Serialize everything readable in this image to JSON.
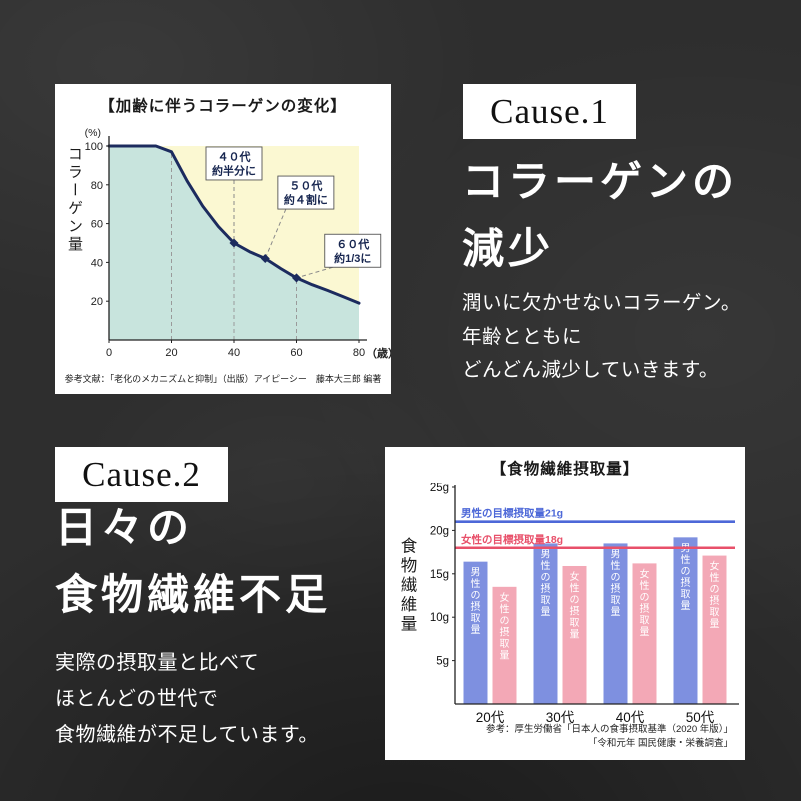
{
  "colors": {
    "background": "#2e2e2e",
    "panel_bg": "#ffffff",
    "text_on_dark": "#ffffff",
    "collagen_line": "#1c2b5e",
    "collagen_plot_bg": "#fbf8d2",
    "collagen_area_fill": "#c8e4dd",
    "annotation_text": "#16254f",
    "male_bar": "#7e90e0",
    "female_bar": "#f3a8b6",
    "male_target_line": "#4d68d8",
    "female_target_line": "#e8506a",
    "axis": "#222222"
  },
  "cause1": {
    "badge": "Cause.1",
    "heading_line1": "コラーゲンの",
    "heading_line2": "減少",
    "body_line1": "潤いに欠かせないコラーゲン。",
    "body_line2": "年齢とともに",
    "body_line3": "どんどん減少していきます。"
  },
  "cause2": {
    "badge": "Cause.2",
    "heading_line1": "日々の",
    "heading_line2": "食物繊維不足",
    "body_line1": "実際の摂取量と比べて",
    "body_line2": "ほとんどの世代で",
    "body_line3": "食物繊維が不足しています。"
  },
  "collagen_panel": {
    "footnote": "参考文献：「老化のメカニズムと抑制」（出版）アイピーシー　藤本大三郎 編著"
  },
  "fiber_panel": {
    "footnote_line1": "参考：厚生労働省「日本人の食事摂取基準（2020 年版）」",
    "footnote_line2": "「令和元年 国民健康・栄養調査」"
  },
  "chart_data": [
    {
      "type": "area",
      "title": "【加齢に伴うコラーゲンの変化】",
      "ylabel": "コラーゲン量",
      "y_unit": "(%)",
      "xlabel": "（歳）",
      "xlim": [
        0,
        80
      ],
      "ylim": [
        0,
        100
      ],
      "x_ticks": [
        0,
        20,
        40,
        60,
        80
      ],
      "y_ticks": [
        20,
        40,
        60,
        80,
        100
      ],
      "x": [
        0,
        15,
        20,
        25,
        30,
        35,
        40,
        45,
        50,
        55,
        60,
        65,
        70,
        75,
        80
      ],
      "y": [
        100,
        100,
        97,
        82,
        69,
        58.5,
        50,
        45.5,
        42,
        36.8,
        32,
        28.5,
        25.5,
        22.3,
        19
      ],
      "dashed_x": [
        20,
        40,
        60
      ],
      "annotations": [
        {
          "line1": "４０代",
          "line2": "約半分に",
          "x": 40,
          "y": 50,
          "box_x": 40,
          "box_y": 91
        },
        {
          "line1": "５０代",
          "line2": "約４割に",
          "x": 50,
          "y": 42,
          "box_x": 63,
          "box_y": 76
        },
        {
          "line1": "６０代",
          "line2": "約1/3に",
          "x": 60,
          "y": 32,
          "box_x": 78,
          "box_y": 46
        }
      ],
      "grid": false,
      "legend": "none"
    },
    {
      "type": "bar",
      "title": "【食物繊維摂取量】",
      "ylabel": "食物繊維量",
      "categories": [
        "20代",
        "30代",
        "40代",
        "50代"
      ],
      "series": [
        {
          "name": "男性の摂取量",
          "values": [
            16.4,
            18.5,
            18.5,
            19.2
          ],
          "color_key": "male_bar"
        },
        {
          "name": "女性の摂取量",
          "values": [
            13.5,
            15.9,
            16.2,
            17.1
          ],
          "color_key": "female_bar"
        }
      ],
      "target_lines": [
        {
          "label": "男性の目標摂取量21g",
          "value": 21,
          "color_key": "male_target_line"
        },
        {
          "label": "女性の目標摂取量18g",
          "value": 18,
          "color_key": "female_target_line"
        }
      ],
      "ylim": [
        0,
        25
      ],
      "y_ticks": [
        5,
        10,
        15,
        20,
        25
      ],
      "y_tick_suffix": "g",
      "grid": false,
      "legend": "inside-bars"
    }
  ]
}
